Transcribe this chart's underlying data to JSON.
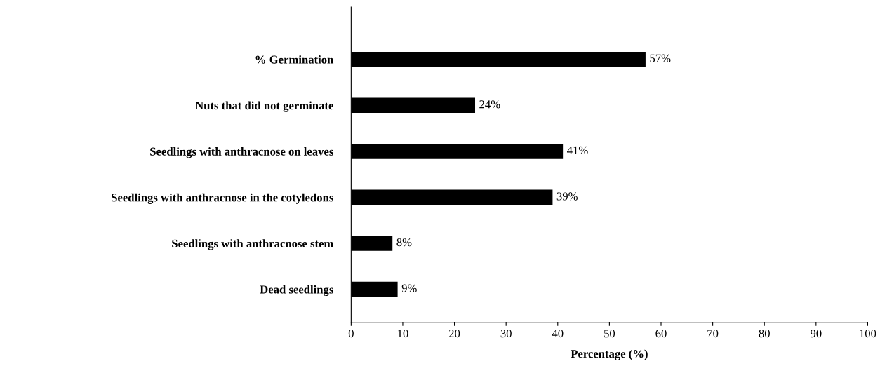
{
  "chart_data": {
    "type": "bar",
    "orientation": "horizontal",
    "xlabel": "Percentage (%)",
    "categories": [
      "% Germination",
      "Nuts that did not germinate",
      "Seedlings with anthracnose on leaves",
      "Seedlings with anthracnose in the cotyledons",
      "Seedlings with anthracnose stem",
      "Dead seedlings"
    ],
    "values": [
      57,
      24,
      41,
      39,
      8,
      9
    ],
    "value_labels": [
      "57%",
      "24%",
      "41%",
      "39%",
      "8%",
      "9%"
    ],
    "color": "#000000",
    "xlim": [
      0,
      100
    ],
    "xticks": [
      0,
      10,
      20,
      30,
      40,
      50,
      60,
      70,
      80,
      90,
      100
    ],
    "grid": false,
    "legend": false
  }
}
